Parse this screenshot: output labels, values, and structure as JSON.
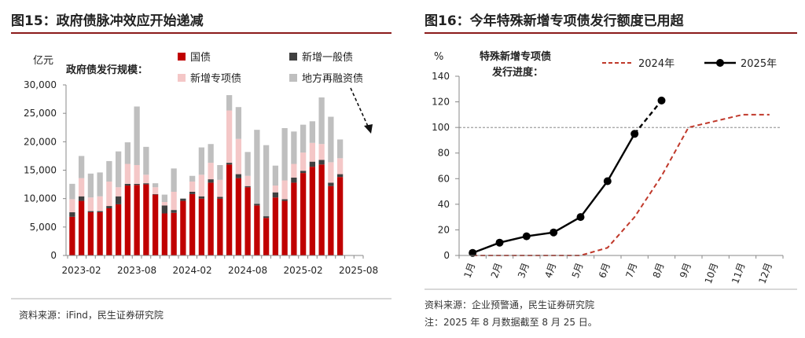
{
  "left_panel": {
    "title": "图15：政府债脉冲效应开始递减",
    "source": "资料来源：iFind，民生证券研究院"
  },
  "right_panel": {
    "title": "图16：今年特殊新增专项债发行额度已用超",
    "source": "资料来源：企业预警通，民生证券研究院",
    "note": "注：2025 年 8 月数据截至 8 月 25 日。"
  },
  "chart_data": [
    {
      "type": "bar",
      "stacked": true,
      "title": "政府债发行规模：",
      "ylabel": "亿元",
      "ylim": [
        0,
        30000
      ],
      "yticks": [
        0,
        5000,
        10000,
        15000,
        20000,
        25000,
        30000
      ],
      "ytick_labels": [
        "0",
        "5,000",
        "10,000",
        "15,000",
        "20,000",
        "25,000",
        "30,000"
      ],
      "xtick_labels": [
        "2023-02",
        "2023-08",
        "2024-02",
        "2024-08",
        "2025-02",
        "2025-08"
      ],
      "categories": [
        "2023-01",
        "2023-02",
        "2023-03",
        "2023-04",
        "2023-05",
        "2023-06",
        "2023-07",
        "2023-08",
        "2023-09",
        "2023-10",
        "2023-11",
        "2023-12",
        "2024-01",
        "2024-02",
        "2024-03",
        "2024-04",
        "2024-05",
        "2024-06",
        "2024-07",
        "2024-08",
        "2024-09",
        "2024-10",
        "2024-11",
        "2024-12",
        "2025-01",
        "2025-02",
        "2025-03",
        "2025-04",
        "2025-05",
        "2025-06",
        "2025-07",
        "2025-08"
      ],
      "series": [
        {
          "name": "国债",
          "color": "#C00000",
          "values": [
            6800,
            9600,
            7600,
            7600,
            8300,
            9000,
            12300,
            12400,
            12500,
            10700,
            7400,
            7500,
            9600,
            10800,
            10000,
            12800,
            10000,
            16000,
            13600,
            12000,
            8800,
            6600,
            10200,
            9600,
            12800,
            14500,
            15600,
            16000,
            12200,
            13800,
            0,
            0
          ]
        },
        {
          "name": "新增一般债",
          "color": "#404040",
          "values": [
            800,
            800,
            200,
            200,
            400,
            1400,
            300,
            200,
            200,
            100,
            1400,
            500,
            400,
            400,
            400,
            600,
            300,
            300,
            700,
            200,
            300,
            300,
            900,
            300,
            900,
            400,
            900,
            800,
            600,
            500,
            0,
            0
          ]
        },
        {
          "name": "新增专项债",
          "color": "#F4C7C7",
          "values": [
            2300,
            3200,
            2400,
            2600,
            4300,
            1600,
            3500,
            3300,
            1500,
            1200,
            600,
            3200,
            0,
            1800,
            3800,
            2900,
            3000,
            9200,
            6200,
            1800,
            0,
            0,
            1200,
            3300,
            2400,
            3200,
            3300,
            2800,
            3600,
            2800,
            0,
            0
          ]
        },
        {
          "name": "地方再融资债",
          "color": "#BFBFBF",
          "values": [
            2700,
            3900,
            4200,
            4200,
            3600,
            6300,
            3800,
            10300,
            4900,
            700,
            1300,
            4100,
            0,
            1000,
            4800,
            3300,
            2600,
            2700,
            5600,
            4200,
            13000,
            12500,
            3500,
            9200,
            5700,
            4900,
            3800,
            8200,
            8000,
            3300,
            0,
            0
          ]
        }
      ],
      "legend": [
        "国债",
        "新增一般债",
        "新增专项债",
        "地方再融资债"
      ],
      "annotation": "dashed arrow indicating decline"
    },
    {
      "type": "line",
      "title": "特殊新增专项债\n发行进度：",
      "ylabel": "%",
      "ylim": [
        0,
        140
      ],
      "yticks": [
        0,
        20,
        40,
        60,
        80,
        100,
        120,
        140
      ],
      "x": [
        "1月",
        "2月",
        "3月",
        "4月",
        "5月",
        "6月",
        "7月",
        "8月",
        "9月",
        "10月",
        "11月",
        "12月"
      ],
      "reference_line": 100,
      "series": [
        {
          "name": "2024年",
          "color": "#C0392B",
          "style": "dashed",
          "values": [
            0,
            0,
            0,
            0,
            0,
            6,
            30,
            62,
            100,
            105,
            110,
            110
          ]
        },
        {
          "name": "2025年",
          "color": "#000000",
          "style": "solid-markers",
          "values": [
            2,
            10,
            15,
            18,
            30,
            58,
            95,
            121,
            null,
            null,
            null,
            null
          ]
        }
      ],
      "legend": [
        "2024年",
        "2025年"
      ]
    }
  ]
}
